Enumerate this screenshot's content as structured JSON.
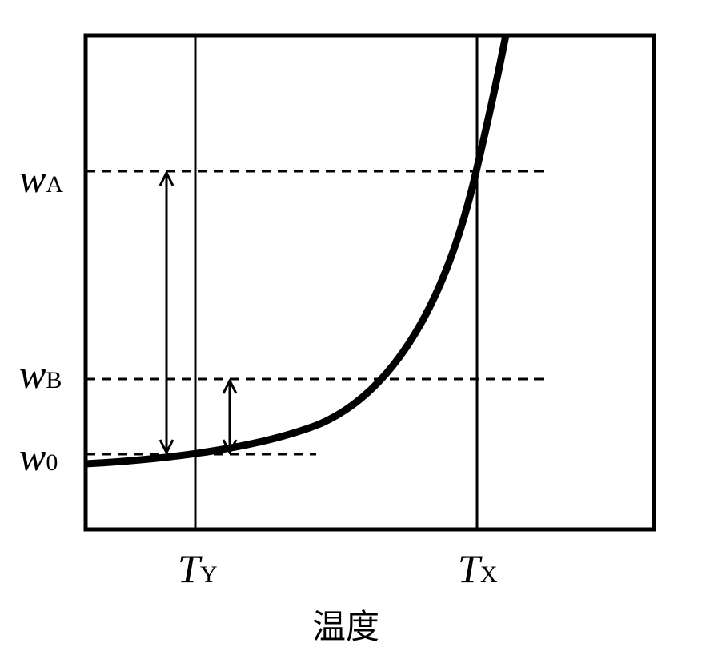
{
  "y_labels": [
    {
      "symbol": "w",
      "subscript": "A"
    },
    {
      "symbol": "w",
      "subscript": "B"
    },
    {
      "symbol": "w",
      "subscript": "0"
    }
  ],
  "x_labels": [
    {
      "symbol": "T",
      "subscript": "Y"
    },
    {
      "symbol": "T",
      "subscript": "X"
    }
  ],
  "x_axis_title": "温度"
}
